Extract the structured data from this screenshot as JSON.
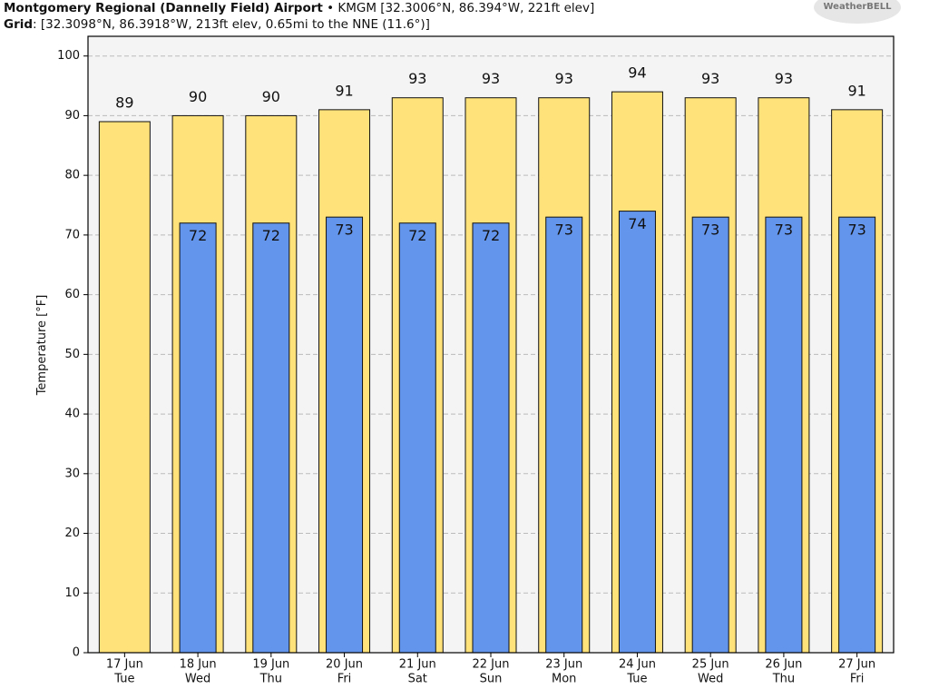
{
  "chart_data": {
    "type": "bar",
    "title": "Montgomery Regional (Dannelly Field) Airport",
    "subtitle": "• KMGM [32.3006°N, 86.394°W, 221ft elev]",
    "grid_label": "Grid",
    "grid_info": ": [32.3098°N, 86.3918°W, 213ft elev, 0.65mi to the NNE (11.6°)]",
    "logo": "WeatherBELL",
    "ylabel": "Temperature [°F]",
    "categories": [
      "17 Jun",
      "18 Jun",
      "19 Jun",
      "20 Jun",
      "21 Jun",
      "22 Jun",
      "23 Jun",
      "24 Jun",
      "25 Jun",
      "26 Jun",
      "27 Jun"
    ],
    "weekdays": [
      "Tue",
      "Wed",
      "Thu",
      "Fri",
      "Sat",
      "Sun",
      "Mon",
      "Tue",
      "Wed",
      "Thu",
      "Fri"
    ],
    "series": [
      {
        "color": "#ffe27a",
        "values": [
          89,
          90,
          90,
          91,
          93,
          93,
          93,
          94,
          93,
          93,
          91
        ]
      },
      {
        "color": "#6495ed",
        "values": [
          null,
          72,
          72,
          73,
          72,
          72,
          73,
          74,
          73,
          73,
          73
        ]
      }
    ],
    "ylim": [
      0,
      103.3
    ],
    "yticks": [
      0,
      10,
      20,
      30,
      40,
      50,
      60,
      70,
      80,
      90,
      100
    ],
    "grid": true
  }
}
